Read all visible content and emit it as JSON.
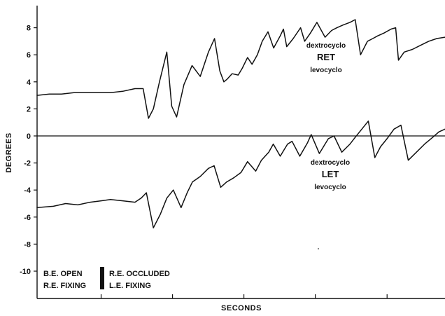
{
  "chart_data": {
    "type": "line",
    "xlabel": "SECONDS",
    "ylabel": "DEGREES",
    "ylim": [
      -12,
      9.5
    ],
    "xlim": [
      0,
      100
    ],
    "yticks": [
      8,
      6,
      4,
      2,
      0,
      -2,
      -4,
      -6,
      -8,
      -10
    ],
    "x_tick_positions": [
      15.7,
      33.2,
      50.7,
      68.2,
      85.8
    ],
    "zero_line": true,
    "series": [
      {
        "name": "RET",
        "x": [
          0,
          3,
          6,
          9,
          12,
          15,
          18,
          21,
          24,
          26,
          27.3,
          28.5,
          30,
          31.8,
          33,
          34.2,
          36,
          38,
          40,
          42,
          43.5,
          44.8,
          45.8,
          46.6,
          47.8,
          49.3,
          50.3,
          51.6,
          52.7,
          54,
          55.2,
          56.6,
          58,
          59.6,
          60.4,
          61.2,
          62.8,
          64.6,
          65.6,
          67,
          68.6,
          70.6,
          72.2,
          73.5,
          75,
          76.7,
          78,
          79.3,
          81,
          82.3,
          83.5,
          85,
          86.8,
          87.9,
          88.6,
          90,
          92,
          94,
          96,
          98,
          100
        ],
        "y": [
          3.0,
          3.1,
          3.1,
          3.2,
          3.2,
          3.2,
          3.2,
          3.3,
          3.5,
          3.5,
          1.3,
          2.0,
          4.0,
          6.2,
          2.2,
          1.4,
          3.8,
          5.2,
          4.4,
          6.2,
          7.2,
          4.8,
          4.0,
          4.2,
          4.6,
          4.5,
          5.0,
          5.8,
          5.3,
          6.0,
          7.0,
          7.7,
          6.5,
          7.4,
          7.9,
          6.6,
          7.2,
          8.0,
          7.0,
          7.6,
          8.4,
          7.3,
          7.8,
          8.0,
          8.2,
          8.4,
          8.6,
          6.0,
          7.0,
          7.2,
          7.4,
          7.6,
          7.9,
          8.0,
          5.6,
          6.2,
          6.4,
          6.7,
          7.0,
          7.2,
          7.3
        ]
      },
      {
        "name": "LET",
        "x": [
          0,
          4,
          7,
          10,
          13,
          15.7,
          18,
          21,
          24,
          25.5,
          26.8,
          28.5,
          30.2,
          31.8,
          33.4,
          35.3,
          36.8,
          38.1,
          40,
          42,
          43.4,
          45,
          46.5,
          48.2,
          50,
          51.6,
          53.6,
          55,
          56.8,
          57.9,
          59.6,
          61.4,
          62.5,
          64.4,
          66.3,
          67.2,
          69.2,
          71.4,
          72.8,
          74.7,
          76.7,
          78,
          79.6,
          81.2,
          82.8,
          84.2,
          85.8,
          87.5,
          89.2,
          91,
          93,
          95,
          97,
          98.5,
          100
        ],
        "y": [
          -5.3,
          -5.2,
          -5.0,
          -5.1,
          -4.9,
          -4.8,
          -4.7,
          -4.8,
          -4.9,
          -4.6,
          -4.2,
          -6.8,
          -5.8,
          -4.6,
          -4.0,
          -5.3,
          -4.2,
          -3.4,
          -3.0,
          -2.4,
          -2.2,
          -3.8,
          -3.4,
          -3.1,
          -2.7,
          -1.9,
          -2.6,
          -1.8,
          -1.2,
          -0.6,
          -1.5,
          -0.6,
          -0.4,
          -1.5,
          -0.5,
          0.1,
          -1.3,
          -0.2,
          0.0,
          -1.2,
          -0.6,
          -0.1,
          0.5,
          1.1,
          -1.6,
          -0.8,
          -0.2,
          0.5,
          0.8,
          -1.8,
          -1.2,
          -0.6,
          -0.1,
          0.3,
          0.5
        ]
      }
    ],
    "annotations": {
      "ret_top": "dextrocyclo",
      "ret_main": "RET",
      "ret_bottom": "levocyclo",
      "let_top": "dextrocyclo",
      "let_main": "LET",
      "let_bottom": "levocyclo"
    },
    "legend": {
      "left_line1": "B.E. OPEN",
      "left_line2": "R.E. FIXING",
      "right_line1": "R.E. OCCLUDED",
      "right_line2": "L.E. FIXING"
    },
    "grid": false,
    "line_color": "#111111"
  }
}
